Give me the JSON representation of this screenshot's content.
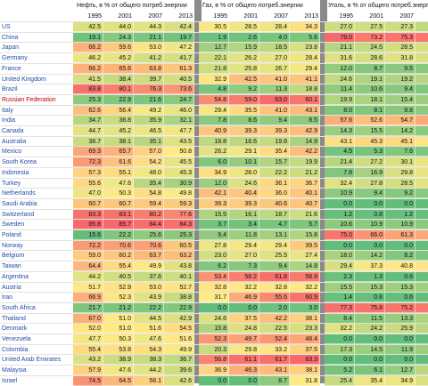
{
  "chart_data": {
    "type": "table",
    "groups": [
      {
        "title": "Нефть, в % от общего потреб.энергии",
        "years": [
          "1995",
          "2001",
          "2007",
          "2013"
        ]
      },
      {
        "title": "Газ, в % от общего потреб.энергии",
        "years": [
          "1995",
          "2001",
          "2007",
          "2013"
        ]
      },
      {
        "title": "Уголь, в % от общего потреб.энергии",
        "years": [
          "1995",
          "2001",
          "2007",
          "2013"
        ]
      }
    ],
    "countries": [
      "US",
      "China",
      "Japan",
      "Germany",
      "France",
      "United Kingdom",
      "Brazil",
      "Russian Federation",
      "Italy",
      "India",
      "Canada",
      "Australia",
      "Mexico",
      "South Korea",
      "Indonesia",
      "Turkey",
      "Netherlands",
      "Saudi Arabia",
      "Switzerland",
      "Sweden",
      "Poland",
      "Norway",
      "Belgium",
      "Taiwan",
      "Argentina",
      "Austria",
      "Iran",
      "South Africa",
      "Thailand",
      "Denmark",
      "Venezuela",
      "Colombia",
      "United Arab Emirates",
      "Malaysia",
      "Israel"
    ],
    "rows": [
      [
        [
          "42.5",
          "44.0",
          "44.3",
          "42.4"
        ],
        [
          "30.5",
          "28.5",
          "28.4",
          "34.3"
        ],
        [
          "27.0",
          "27.5",
          "27.3",
          "23.3"
        ]
      ],
      [
        [
          "19.1",
          "24.3",
          "21.1",
          "19.7"
        ],
        [
          "1.9",
          "2.6",
          "4.0",
          "5.6"
        ],
        [
          "79.0",
          "73.2",
          "75.3",
          "74.7"
        ]
      ],
      [
        [
          "66.2",
          "59.6",
          "53.0",
          "47.2"
        ],
        [
          "12.7",
          "15.9",
          "18.5",
          "23.8"
        ],
        [
          "21.1",
          "24.5",
          "28.5",
          "29.0"
        ]
      ],
      [
        [
          "46.2",
          "45.2",
          "41.2",
          "41.7"
        ],
        [
          "22.1",
          "26.2",
          "27.0",
          "28.4"
        ],
        [
          "31.6",
          "28.6",
          "31.8",
          "30.0"
        ]
      ],
      [
        [
          "66.2",
          "65.6",
          "63.8",
          "61.3"
        ],
        [
          "21.8",
          "25.8",
          "26.7",
          "29.4"
        ],
        [
          "12.0",
          "8.7",
          "9.5",
          "9.3"
        ]
      ],
      [
        [
          "41.5",
          "38.4",
          "39.7",
          "40.5"
        ],
        [
          "32.9",
          "42.5",
          "41.0",
          "41.1"
        ],
        [
          "24.6",
          "19.1",
          "19.2",
          "21.2"
        ]
      ],
      [
        [
          "83.8",
          "80.1",
          "76.3",
          "73.6"
        ],
        [
          "4.8",
          "9.2",
          "11.3",
          "18.8"
        ],
        [
          "11.4",
          "10.6",
          "9.4",
          "7.6"
        ]
      ],
      [
        [
          "25.3",
          "22.9",
          "21.6",
          "24.7"
        ],
        [
          "54.8",
          "59.0",
          "63.0",
          "60.1"
        ],
        [
          "19.9",
          "18.1",
          "15.4",
          "15.2"
        ]
      ],
      [
        [
          "62.6",
          "56.4",
          "49.2",
          "46.0"
        ],
        [
          "29.4",
          "35.5",
          "41.0",
          "43.1"
        ],
        [
          "8.0",
          "8.1",
          "9.8",
          "10.9"
        ]
      ],
      [
        [
          "34.7",
          "38.8",
          "35.9",
          "32.1"
        ],
        [
          "7.8",
          "8.6",
          "9.4",
          "8.5"
        ],
        [
          "57.6",
          "52.6",
          "54.7",
          "59.4"
        ]
      ],
      [
        [
          "44.7",
          "45.2",
          "46.5",
          "47.7"
        ],
        [
          "40.9",
          "39.3",
          "39.3",
          "42.9"
        ],
        [
          "14.3",
          "15.5",
          "14.2",
          "9.3"
        ]
      ],
      [
        [
          "38.7",
          "38.1",
          "35.1",
          "43.5"
        ],
        [
          "18.8",
          "18.6",
          "19.8",
          "14.9"
        ],
        [
          "43.1",
          "45.3",
          "45.1",
          "41.6"
        ]
      ],
      [
        [
          "69.3",
          "65.7",
          "57.0",
          "50.8"
        ],
        [
          "26.2",
          "29.1",
          "35.4",
          "42.2"
        ],
        [
          "4.5",
          "5.3",
          "7.6",
          "7.0"
        ]
      ],
      [
        [
          "72.3",
          "61.6",
          "54.2",
          "45.5"
        ],
        [
          "6.0",
          "10.1",
          "15.7",
          "19.9"
        ],
        [
          "21.4",
          "27.2",
          "30.1",
          "34.5"
        ]
      ],
      [
        [
          "57.3",
          "55.1",
          "48.0",
          "45.3"
        ],
        [
          "34.9",
          "28.0",
          "22.2",
          "21.2"
        ],
        [
          "7.8",
          "16.9",
          "29.8",
          "33.4"
        ]
      ],
      [
        [
          "55.6",
          "47.6",
          "35.4",
          "30.9"
        ],
        [
          "12.0",
          "24.6",
          "36.1",
          "36.7"
        ],
        [
          "32.4",
          "27.8",
          "28.5",
          "32.4"
        ]
      ],
      [
        [
          "47.0",
          "50.3",
          "54.8",
          "49.8"
        ],
        [
          "42.1",
          "40.4",
          "36.0",
          "40.1"
        ],
        [
          "10.9",
          "9.4",
          "9.2",
          "10.0"
        ]
      ],
      [
        [
          "60.7",
          "60.7",
          "59.4",
          "59.3"
        ],
        [
          "39.3",
          "39.3",
          "40.6",
          "40.7"
        ],
        [
          "0.0",
          "0.0",
          "0.0",
          "0.0"
        ]
      ],
      [
        [
          "83.3",
          "83.1",
          "80.2",
          "77.6"
        ],
        [
          "15.5",
          "16.1",
          "18.7",
          "21.6"
        ],
        [
          "1.2",
          "0.8",
          "1.2",
          "0.8"
        ]
      ],
      [
        [
          "85.8",
          "85.7",
          "84.4",
          "84.3"
        ],
        [
          "3.7",
          "3.4",
          "4.7",
          "5.7"
        ],
        [
          "10.6",
          "10.9",
          "10.9",
          "10.0"
        ]
      ],
      [
        [
          "15.6",
          "22.2",
          "25.6",
          "25.3"
        ],
        [
          "9.4",
          "11.8",
          "13.1",
          "15.8"
        ],
        [
          "75.0",
          "66.0",
          "61.3",
          "59.0"
        ]
      ],
      [
        [
          "72.2",
          "70.6",
          "70.6",
          "60.5"
        ],
        [
          "27.8",
          "29.4",
          "29.4",
          "39.5"
        ],
        [
          "0.0",
          "0.0",
          "0.0",
          "0.0"
        ]
      ],
      [
        [
          "59.0",
          "60.2",
          "63.7",
          "63.2"
        ],
        [
          "23.0",
          "27.0",
          "25.5",
          "27.4"
        ],
        [
          "18.0",
          "14.2",
          "8.2",
          "6.0"
        ]
      ],
      [
        [
          "64.4",
          "55.4",
          "49.9",
          "43.8"
        ],
        [
          "6.2",
          "7.3",
          "9.4",
          "14.8"
        ],
        [
          "29.4",
          "37.3",
          "40.8",
          "41.4"
        ]
      ],
      [
        [
          "44.2",
          "40.5",
          "37.6",
          "40.1"
        ],
        [
          "53.4",
          "58.2",
          "61.8",
          "58.9"
        ],
        [
          "2.3",
          "1.3",
          "0.6",
          "1.0"
        ]
      ],
      [
        [
          "51.7",
          "52.9",
          "53.0",
          "52.7"
        ],
        [
          "32.8",
          "32.2",
          "32.8",
          "32.2"
        ],
        [
          "15.5",
          "15.3",
          "15.3",
          "15.1"
        ]
      ],
      [
        [
          "66.9",
          "52.3",
          "43.9",
          "38.8"
        ],
        [
          "31.7",
          "46.9",
          "55.6",
          "60.9"
        ],
        [
          "1.4",
          "0.8",
          "0.6",
          "0.3"
        ]
      ],
      [
        [
          "21.7",
          "21.2",
          "22.2",
          "22.9"
        ],
        [
          "0.0",
          "0.0",
          "2.0",
          "3.0"
        ],
        [
          "77.3",
          "75.8",
          "75.2",
          "74.2"
        ]
      ],
      [
        [
          "67.0",
          "51.0",
          "44.5",
          "42.9"
        ],
        [
          "24.6",
          "37.5",
          "42.2",
          "38.1"
        ],
        [
          "8.4",
          "11.5",
          "13.3",
          "19.0"
        ]
      ],
      [
        [
          "52.0",
          "51.0",
          "51.6",
          "54.5"
        ],
        [
          "15.8",
          "24.8",
          "22.5",
          "23.3"
        ],
        [
          "32.2",
          "24.2",
          "25.9",
          "22.2"
        ]
      ],
      [
        [
          "47.7",
          "50.3",
          "47.6",
          "51.6"
        ],
        [
          "52.3",
          "49.7",
          "52.4",
          "48.4"
        ],
        [
          "0.0",
          "0.0",
          "0.0",
          "0.0"
        ]
      ],
      [
        [
          "55.4",
          "53.8",
          "54.3",
          "49.9"
        ],
        [
          "20.3",
          "29.8",
          "33.2",
          "37.5"
        ],
        [
          "17.3",
          "14.5",
          "11.9",
          "15.2"
        ]
      ],
      [
        [
          "43.2",
          "38.9",
          "38.3",
          "36.7"
        ],
        [
          "56.8",
          "61.1",
          "61.7",
          "63.3"
        ],
        [
          "0.0",
          "0.0",
          "0.0",
          "0.0"
        ]
      ],
      [
        [
          "57.9",
          "47.6",
          "44.2",
          "39.6"
        ],
        [
          "36.9",
          "46.3",
          "43.1",
          "38.1"
        ],
        [
          "5.2",
          "6.1",
          "12.7",
          "22.3"
        ]
      ],
      [
        [
          "74.5",
          "64.5",
          "58.1",
          "42.6"
        ],
        [
          "0.0",
          "0.0",
          "8.7",
          "31.8"
        ],
        [
          "25.4",
          "35.4",
          "34.9",
          "30.5"
        ]
      ]
    ],
    "highlight_colors": {
      "best": "#63be7b",
      "mid": "#ffeb84",
      "worst": "#f8696b"
    }
  }
}
